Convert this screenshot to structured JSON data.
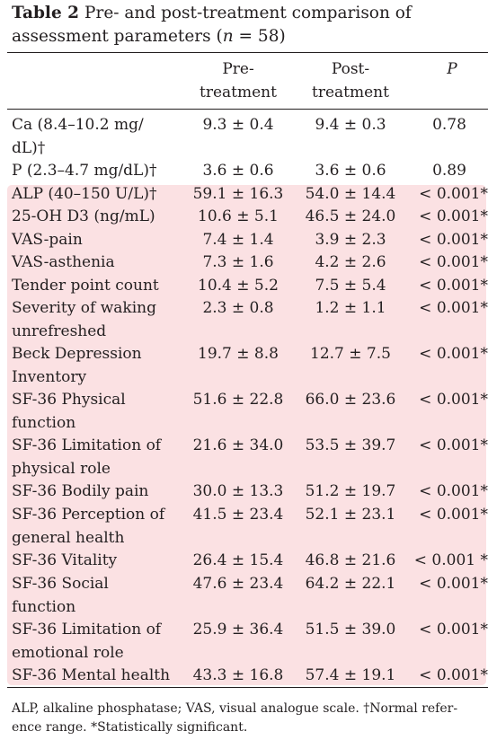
{
  "caption": {
    "label": "Table 2",
    "text_before": "Pre- and post-treatment comparison of assessment parameters (",
    "n_symbol": "n",
    "text_after": " = 58)"
  },
  "headers": {
    "pre_line1": "Pre-",
    "pre_line2": "treatment",
    "post_line1": "Post-",
    "post_line2": "treatment",
    "p": "P"
  },
  "rows": [
    {
      "label1": "Ca (8.4–10.2 mg/",
      "label2": "dL)†",
      "pre": "9.3 ± 0.4",
      "post": "9.4 ± 0.3",
      "p": "0.78"
    },
    {
      "label1": "P (2.3–4.7 mg/dL)†",
      "label2": "",
      "pre": "3.6 ± 0.6",
      "post": "3.6 ± 0.6",
      "p": "0.89"
    },
    {
      "label1": "ALP (40–150 U/L)†",
      "label2": "",
      "pre": "59.1 ± 16.3",
      "post": "54.0 ± 14.4",
      "p": "< 0.001*"
    },
    {
      "label1": "25-OH D3 (ng/mL)",
      "label2": "",
      "pre": "10.6 ± 5.1",
      "post": "46.5 ± 24.0",
      "p": "< 0.001*"
    },
    {
      "label1": "VAS-pain",
      "label2": "",
      "pre": "7.4 ± 1.4",
      "post": "3.9 ± 2.3",
      "p": "< 0.001*"
    },
    {
      "label1": "VAS-asthenia",
      "label2": "",
      "pre": "7.3 ± 1.6",
      "post": "4.2 ± 2.6",
      "p": "< 0.001*"
    },
    {
      "label1": "Tender point count",
      "label2": "",
      "pre": "10.4 ± 5.2",
      "post": "7.5 ± 5.4",
      "p": "< 0.001*"
    },
    {
      "label1": "Severity of waking",
      "label2": "unrefreshed",
      "pre": "2.3 ± 0.8",
      "post": "1.2 ± 1.1",
      "p": "< 0.001*"
    },
    {
      "label1": "Beck Depression",
      "label2": "Inventory",
      "pre": "19.7 ± 8.8",
      "post": "12.7 ± 7.5",
      "p": "< 0.001*"
    },
    {
      "label1": "SF-36 Physical",
      "label2": "function",
      "pre": "51.6 ± 22.8",
      "post": "66.0 ± 23.6",
      "p": "< 0.001*"
    },
    {
      "label1": "SF-36 Limitation of",
      "label2": "physical role",
      "pre": "21.6 ± 34.0",
      "post": "53.5 ± 39.7",
      "p": "< 0.001*"
    },
    {
      "label1": "SF-36 Bodily pain",
      "label2": "",
      "pre": "30.0 ± 13.3",
      "post": "51.2 ± 19.7",
      "p": "< 0.001*"
    },
    {
      "label1": "SF-36 Perception of",
      "label2": "general health",
      "pre": "41.5 ± 23.4",
      "post": "52.1 ± 23.1",
      "p": "< 0.001*"
    },
    {
      "label1": "SF-36 Vitality",
      "label2": "",
      "pre": "26.4 ± 15.4",
      "post": "46.8 ± 21.6",
      "p": "< 0.001 *"
    },
    {
      "label1": "SF-36 Social",
      "label2": "function",
      "pre": "47.6 ± 23.4",
      "post": "64.2 ± 22.1",
      "p": "< 0.001*"
    },
    {
      "label1": "SF-36 Limitation of",
      "label2": "emotional role",
      "pre": "25.9 ± 36.4",
      "post": "51.5 ± 39.0",
      "p": "< 0.001*"
    },
    {
      "label1": "SF-36 Mental health",
      "label2": "",
      "pre": "43.3 ± 16.8",
      "post": "57.4 ± 19.1",
      "p": "< 0.001*"
    }
  ],
  "footnote": {
    "line1": "ALP, alkaline phosphatase; VAS, visual analogue scale. †Normal refer-",
    "line2": "ence range. *Statistically significant."
  },
  "colors": {
    "highlight": "#fbe1e3",
    "text": "#231f20"
  }
}
